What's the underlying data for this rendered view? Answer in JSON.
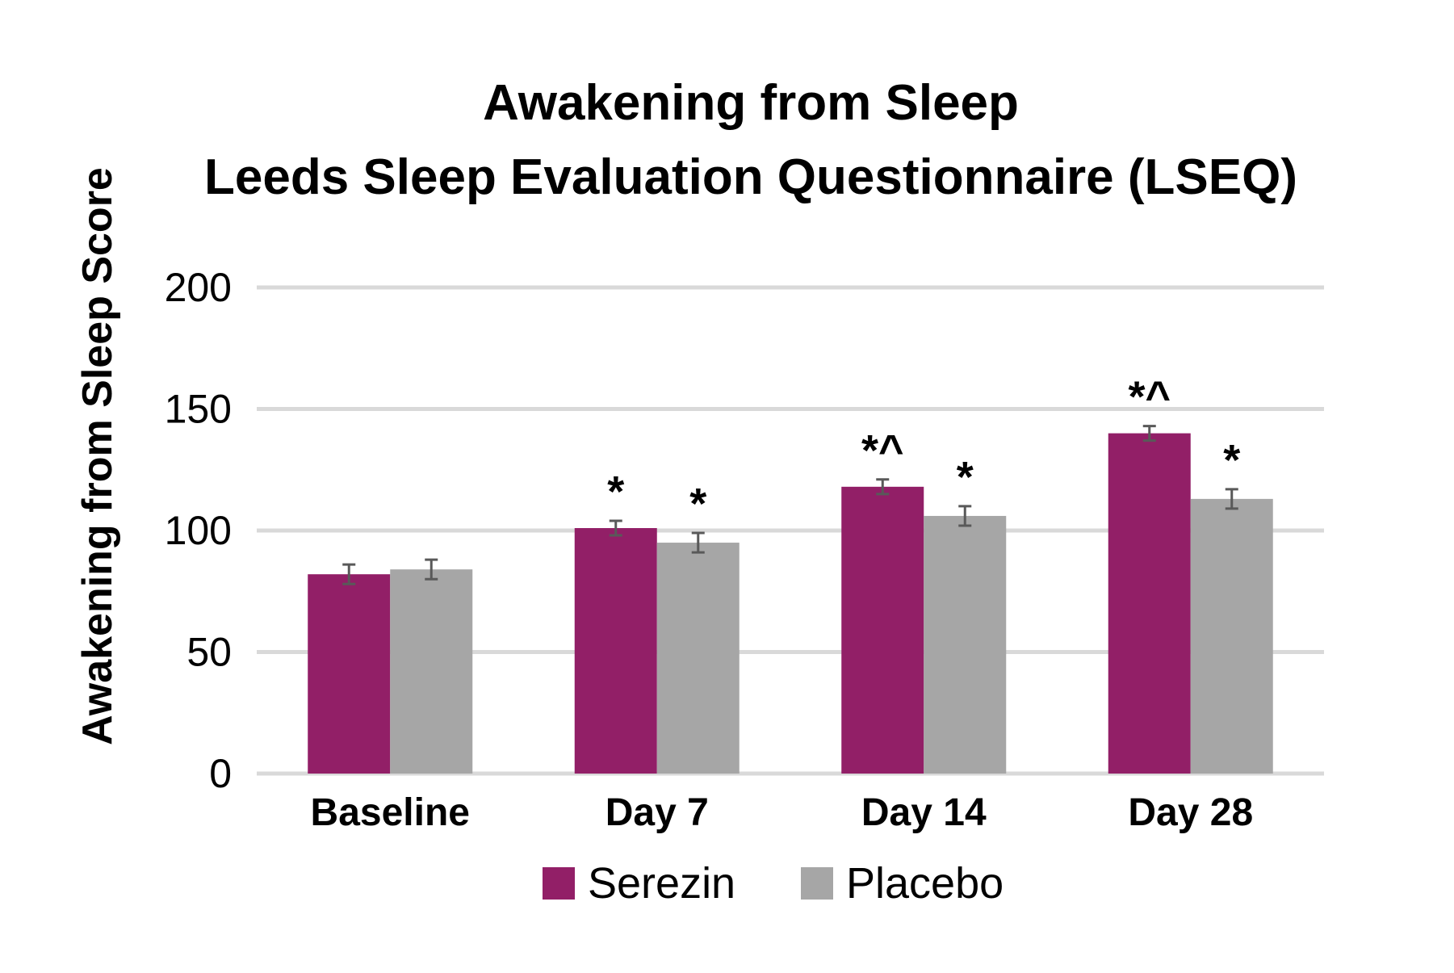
{
  "chart_data": {
    "type": "bar",
    "title_lines": [
      "Awakening from Sleep",
      "Leeds Sleep Evaluation Questionnaire (LSEQ)"
    ],
    "ylabel": "Awakening from Sleep Score",
    "xlabel": "",
    "ylim": [
      0,
      200
    ],
    "yticks": [
      0,
      50,
      100,
      150,
      200
    ],
    "ytick_labels": [
      "0",
      "50",
      "100",
      "150",
      "200"
    ],
    "grid": true,
    "legend_position": "bottom",
    "categories": [
      "Baseline",
      "Day 7",
      "Day 14",
      "Day 28"
    ],
    "series": [
      {
        "name": "Serezin",
        "color": "#921f67",
        "values": [
          82,
          101,
          118,
          140
        ],
        "errors": [
          4,
          3,
          3,
          3
        ],
        "annotations": [
          "",
          "*",
          "*^",
          "*^"
        ]
      },
      {
        "name": "Placebo",
        "color": "#a6a6a6",
        "values": [
          84,
          95,
          106,
          113
        ],
        "errors": [
          4,
          4,
          4,
          4
        ],
        "annotations": [
          "",
          "*",
          "*",
          "*"
        ]
      }
    ],
    "gridline_color": "#d9d9d9",
    "errorbar_color": "#595959"
  }
}
